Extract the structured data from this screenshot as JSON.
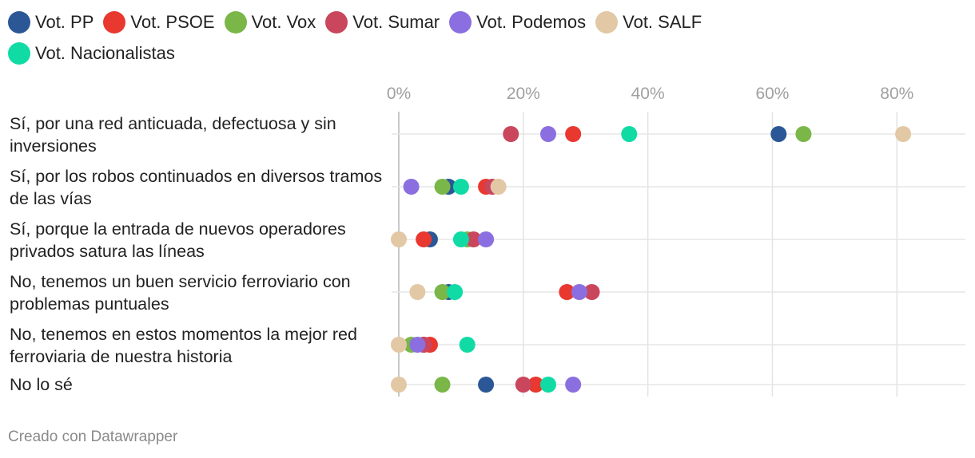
{
  "legend": [
    {
      "label": "Vot. PP",
      "color": "#2b5797"
    },
    {
      "label": "Vot. PSOE",
      "color": "#e8382f"
    },
    {
      "label": "Vot. Vox",
      "color": "#7ab648"
    },
    {
      "label": "Vot. Sumar",
      "color": "#c9465d"
    },
    {
      "label": "Vot. Podemos",
      "color": "#8b6fe0"
    },
    {
      "label": "Vot. SALF",
      "color": "#e3c8a5"
    },
    {
      "label": "Vot. Nacionalistas",
      "color": "#10dba5"
    }
  ],
  "footer": "Creado con Datawrapper",
  "chart_data": {
    "type": "scatter",
    "orientation": "horizontal-dot-plot",
    "xlim": [
      0,
      91
    ],
    "x_ticks": [
      0,
      20,
      40,
      60,
      80
    ],
    "x_tick_labels": [
      "0%",
      "20%",
      "40%",
      "60%",
      "80%"
    ],
    "categories": [
      "Sí, por una red anticuada, defectuosa y sin inversiones",
      "Sí, por los robos continuados en diversos tramos de las vías",
      "Sí, porque la entrada de nuevos operadores privados satura las líneas",
      "No, tenemos un buen servicio ferroviario con problemas puntuales",
      "No, tenemos en estos momentos la mejor red ferroviaria de nuestra historia",
      "No lo sé"
    ],
    "series": [
      {
        "name": "Vot. PP",
        "color": "#2b5797",
        "values": [
          61,
          8,
          5,
          8,
          4,
          14
        ]
      },
      {
        "name": "Vot. PSOE",
        "color": "#e8382f",
        "values": [
          28,
          14,
          4,
          27,
          5,
          22
        ]
      },
      {
        "name": "Vot. Vox",
        "color": "#7ab648",
        "values": [
          65,
          7,
          11,
          7,
          2,
          7
        ]
      },
      {
        "name": "Vot. Sumar",
        "color": "#c9465d",
        "values": [
          18,
          15,
          12,
          31,
          4,
          20
        ]
      },
      {
        "name": "Vot. Podemos",
        "color": "#8b6fe0",
        "values": [
          24,
          2,
          14,
          29,
          3,
          28
        ]
      },
      {
        "name": "Vot. SALF",
        "color": "#e3c8a5",
        "values": [
          81,
          16,
          0,
          3,
          0,
          0
        ]
      },
      {
        "name": "Vot. Nacionalistas",
        "color": "#10dba5",
        "values": [
          37,
          10,
          10,
          9,
          11,
          24
        ]
      }
    ],
    "grid": true,
    "legend_position": "top"
  }
}
